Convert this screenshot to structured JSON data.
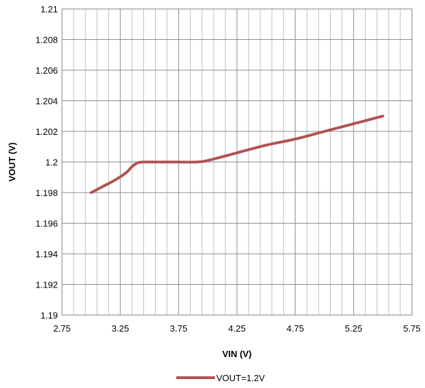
{
  "chart_data": {
    "type": "line",
    "title": "",
    "xlabel": "VIN (V)",
    "ylabel": "VOUT (V)",
    "xlim": [
      2.75,
      5.75
    ],
    "ylim": [
      1.19,
      1.21
    ],
    "x_ticks": [
      "2.75",
      "3.25",
      "3.75",
      "4.25",
      "4.75",
      "5.25",
      "5.75"
    ],
    "y_ticks": [
      "1.21",
      "1.208",
      "1.206",
      "1.204",
      "1.202",
      "1.2",
      "1.198",
      "1.196",
      "1.194",
      "1.192",
      "1.19"
    ],
    "grid": true,
    "legend_position": "bottom",
    "series": [
      {
        "name": "VOUT=1.2V",
        "color": "#b05252",
        "x": [
          3.0,
          3.1,
          3.2,
          3.3,
          3.35,
          3.4,
          3.45,
          3.5,
          3.6,
          3.75,
          3.9,
          4.0,
          4.25,
          4.5,
          4.75,
          5.0,
          5.25,
          5.5
        ],
        "y": [
          1.198,
          1.1984,
          1.1988,
          1.1993,
          1.1997,
          1.19995,
          1.2,
          1.2,
          1.2,
          1.2,
          1.2,
          1.2001,
          1.2006,
          1.2011,
          1.2015,
          1.202,
          1.2025,
          1.203
        ]
      }
    ]
  }
}
